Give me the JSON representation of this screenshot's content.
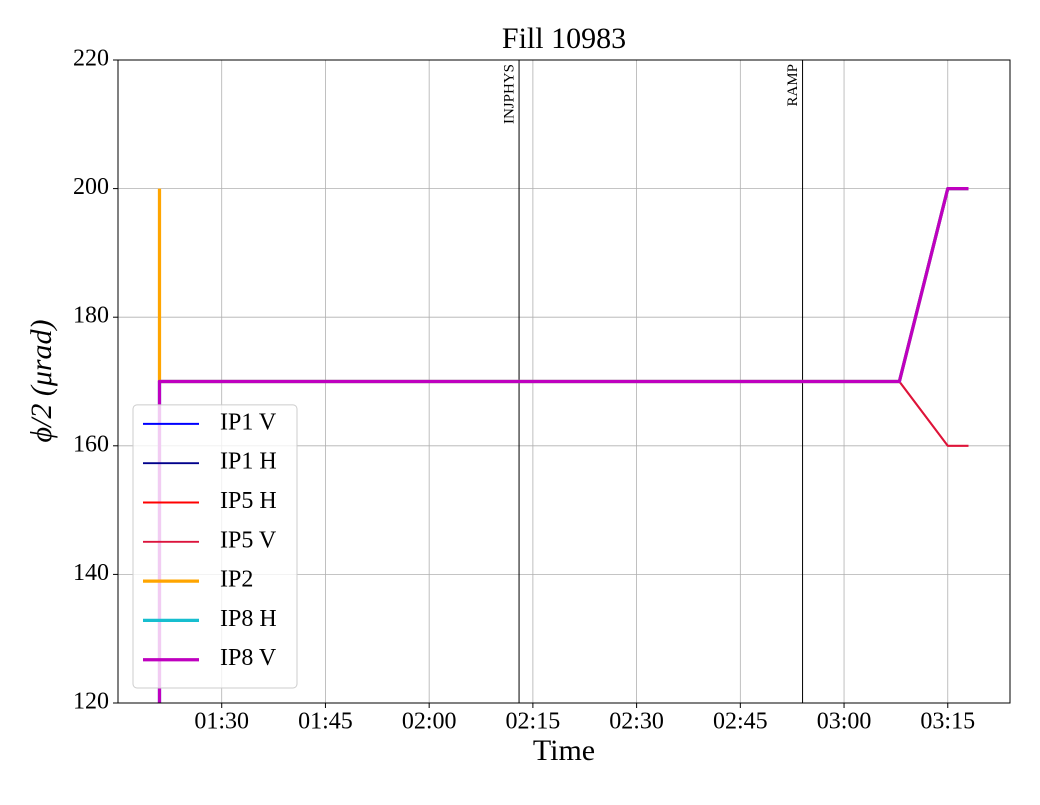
{
  "chart_data": {
    "type": "line",
    "title": "Fill 10983",
    "xlabel": "Time",
    "ylabel": "ϕ/2 (μrad)",
    "x": [
      "01:21",
      "01:21",
      "03:08",
      "03:15",
      "03:18"
    ],
    "series": [
      {
        "name": "IP1 V",
        "color": "#0000ff",
        "width": 1.5,
        "values": [
          120,
          170,
          170,
          200,
          200
        ]
      },
      {
        "name": "IP1 H",
        "color": "#00008b",
        "width": 1.5,
        "values": [
          120,
          170,
          170,
          200,
          200
        ]
      },
      {
        "name": "IP5 H",
        "color": "#ff0000",
        "width": 1.5,
        "values": [
          170,
          170,
          170,
          160,
          160
        ]
      },
      {
        "name": "IP5 V",
        "color": "#dc143c",
        "width": 1.5,
        "values": [
          170,
          170,
          170,
          160,
          160
        ]
      },
      {
        "name": "IP2",
        "color": "#ffa500",
        "width": 2.5,
        "values": [
          200,
          170,
          170,
          200,
          200
        ]
      },
      {
        "name": "IP8 H",
        "color": "#17becf",
        "width": 2.5,
        "values": [
          120,
          170,
          170,
          200,
          200
        ]
      },
      {
        "name": "IP8 V",
        "color": "#bf00bf",
        "width": 2.5,
        "values": [
          120,
          170,
          170,
          200,
          200
        ]
      }
    ],
    "markers": [
      {
        "x": "02:13",
        "label": "INJPHYS"
      },
      {
        "x": "02:54",
        "label": "RAMP"
      }
    ],
    "xlim": [
      "01:15",
      "03:24"
    ],
    "xticks": [
      "01:30",
      "01:45",
      "02:00",
      "02:15",
      "02:30",
      "02:45",
      "03:00",
      "03:15"
    ],
    "ylim": [
      120,
      220
    ],
    "yticks": [
      120,
      140,
      160,
      180,
      200,
      220
    ],
    "grid": true,
    "legend": "lower left"
  }
}
